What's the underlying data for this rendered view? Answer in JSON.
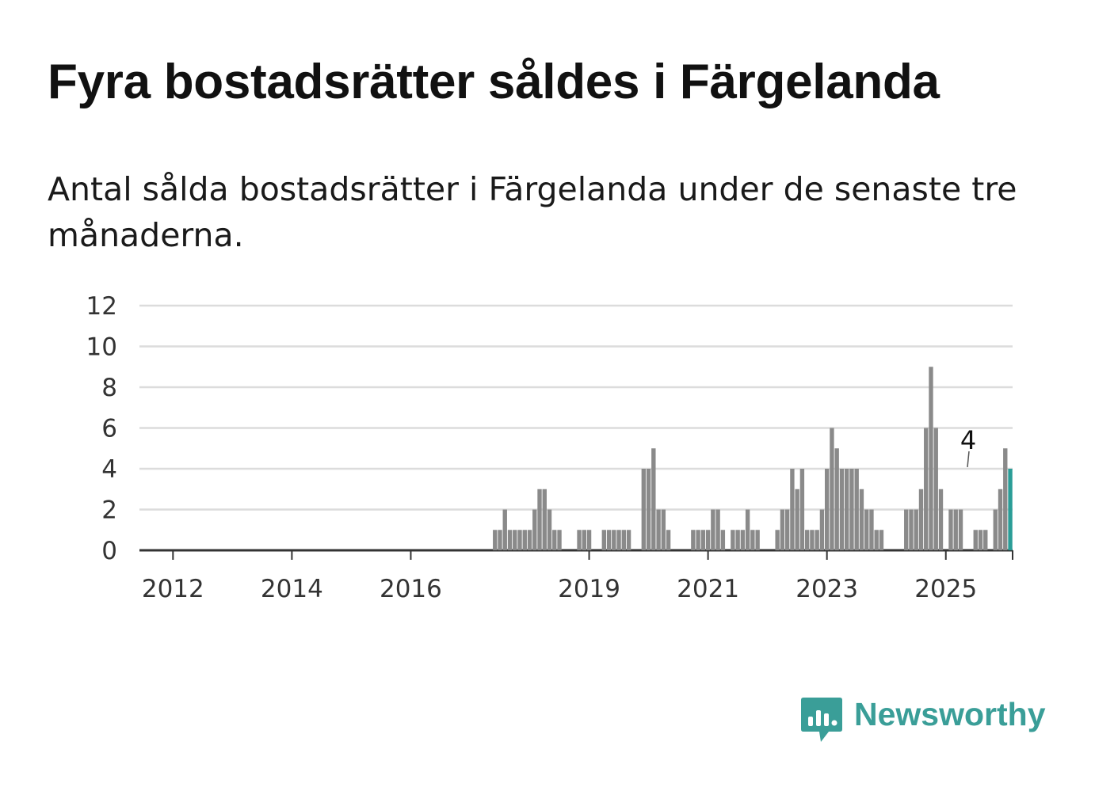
{
  "title": "Fyra bostadsrätter såldes i Färgelanda",
  "subtitle": "Antal sålda bostadsrätter i Färgelanda under de senaste tre månaderna.",
  "brand": {
    "name": "Newsworthy",
    "icon": "newsworthy-logo-icon",
    "color": "#3a9e98"
  },
  "chart_data": {
    "type": "bar",
    "title": "",
    "xlabel": "",
    "ylabel": "",
    "ylim": [
      0,
      12
    ],
    "y_ticks": [
      0,
      2,
      4,
      6,
      8,
      10,
      12
    ],
    "x_ticks": [
      "2012",
      "2014",
      "2016",
      "2019",
      "2021",
      "2023",
      "2025"
    ],
    "grid": true,
    "bar_color": "#8a8a8a",
    "highlight_color": "#2a9d97",
    "start_month": "2011-04",
    "end_month": "2025-06",
    "series": [
      {
        "values": [
          0,
          0,
          0,
          0,
          0,
          0,
          0,
          0,
          0,
          0,
          0,
          0,
          0,
          0,
          0,
          0,
          0,
          0,
          0,
          0,
          0,
          0,
          0,
          0,
          0,
          0,
          0,
          0,
          0,
          0,
          0,
          0,
          0,
          0,
          0,
          0,
          0,
          0,
          0,
          0,
          0,
          0,
          0,
          0,
          0,
          0,
          0,
          0,
          0,
          0,
          0,
          0,
          0,
          0,
          0,
          0,
          0,
          0,
          0,
          0,
          0,
          0,
          0,
          0,
          0,
          0,
          0,
          0,
          0,
          0,
          0,
          0,
          0,
          0,
          1,
          1,
          2,
          1,
          1,
          1,
          1,
          1,
          2,
          3,
          3,
          2,
          1,
          1,
          0,
          0,
          0,
          1,
          1,
          1,
          0,
          0,
          1,
          1,
          1,
          1,
          1,
          1,
          0,
          0,
          4,
          4,
          5,
          2,
          2,
          1,
          0,
          0,
          0,
          0,
          1,
          1,
          1,
          1,
          2,
          2,
          1,
          0,
          1,
          1,
          1,
          2,
          1,
          1,
          0,
          0,
          0,
          1,
          2,
          2,
          4,
          3,
          4,
          1,
          1,
          1,
          2,
          4,
          6,
          5,
          4,
          4,
          4,
          4,
          3,
          2,
          2,
          1,
          1,
          0,
          0,
          0,
          0,
          2,
          2,
          2,
          3,
          6,
          9,
          6,
          3,
          0,
          2,
          2,
          2,
          0,
          0,
          1,
          1,
          1,
          0,
          2,
          3,
          5,
          4
        ]
      }
    ],
    "annotation": {
      "text": "4",
      "month": "2025-06",
      "value": 4
    }
  }
}
